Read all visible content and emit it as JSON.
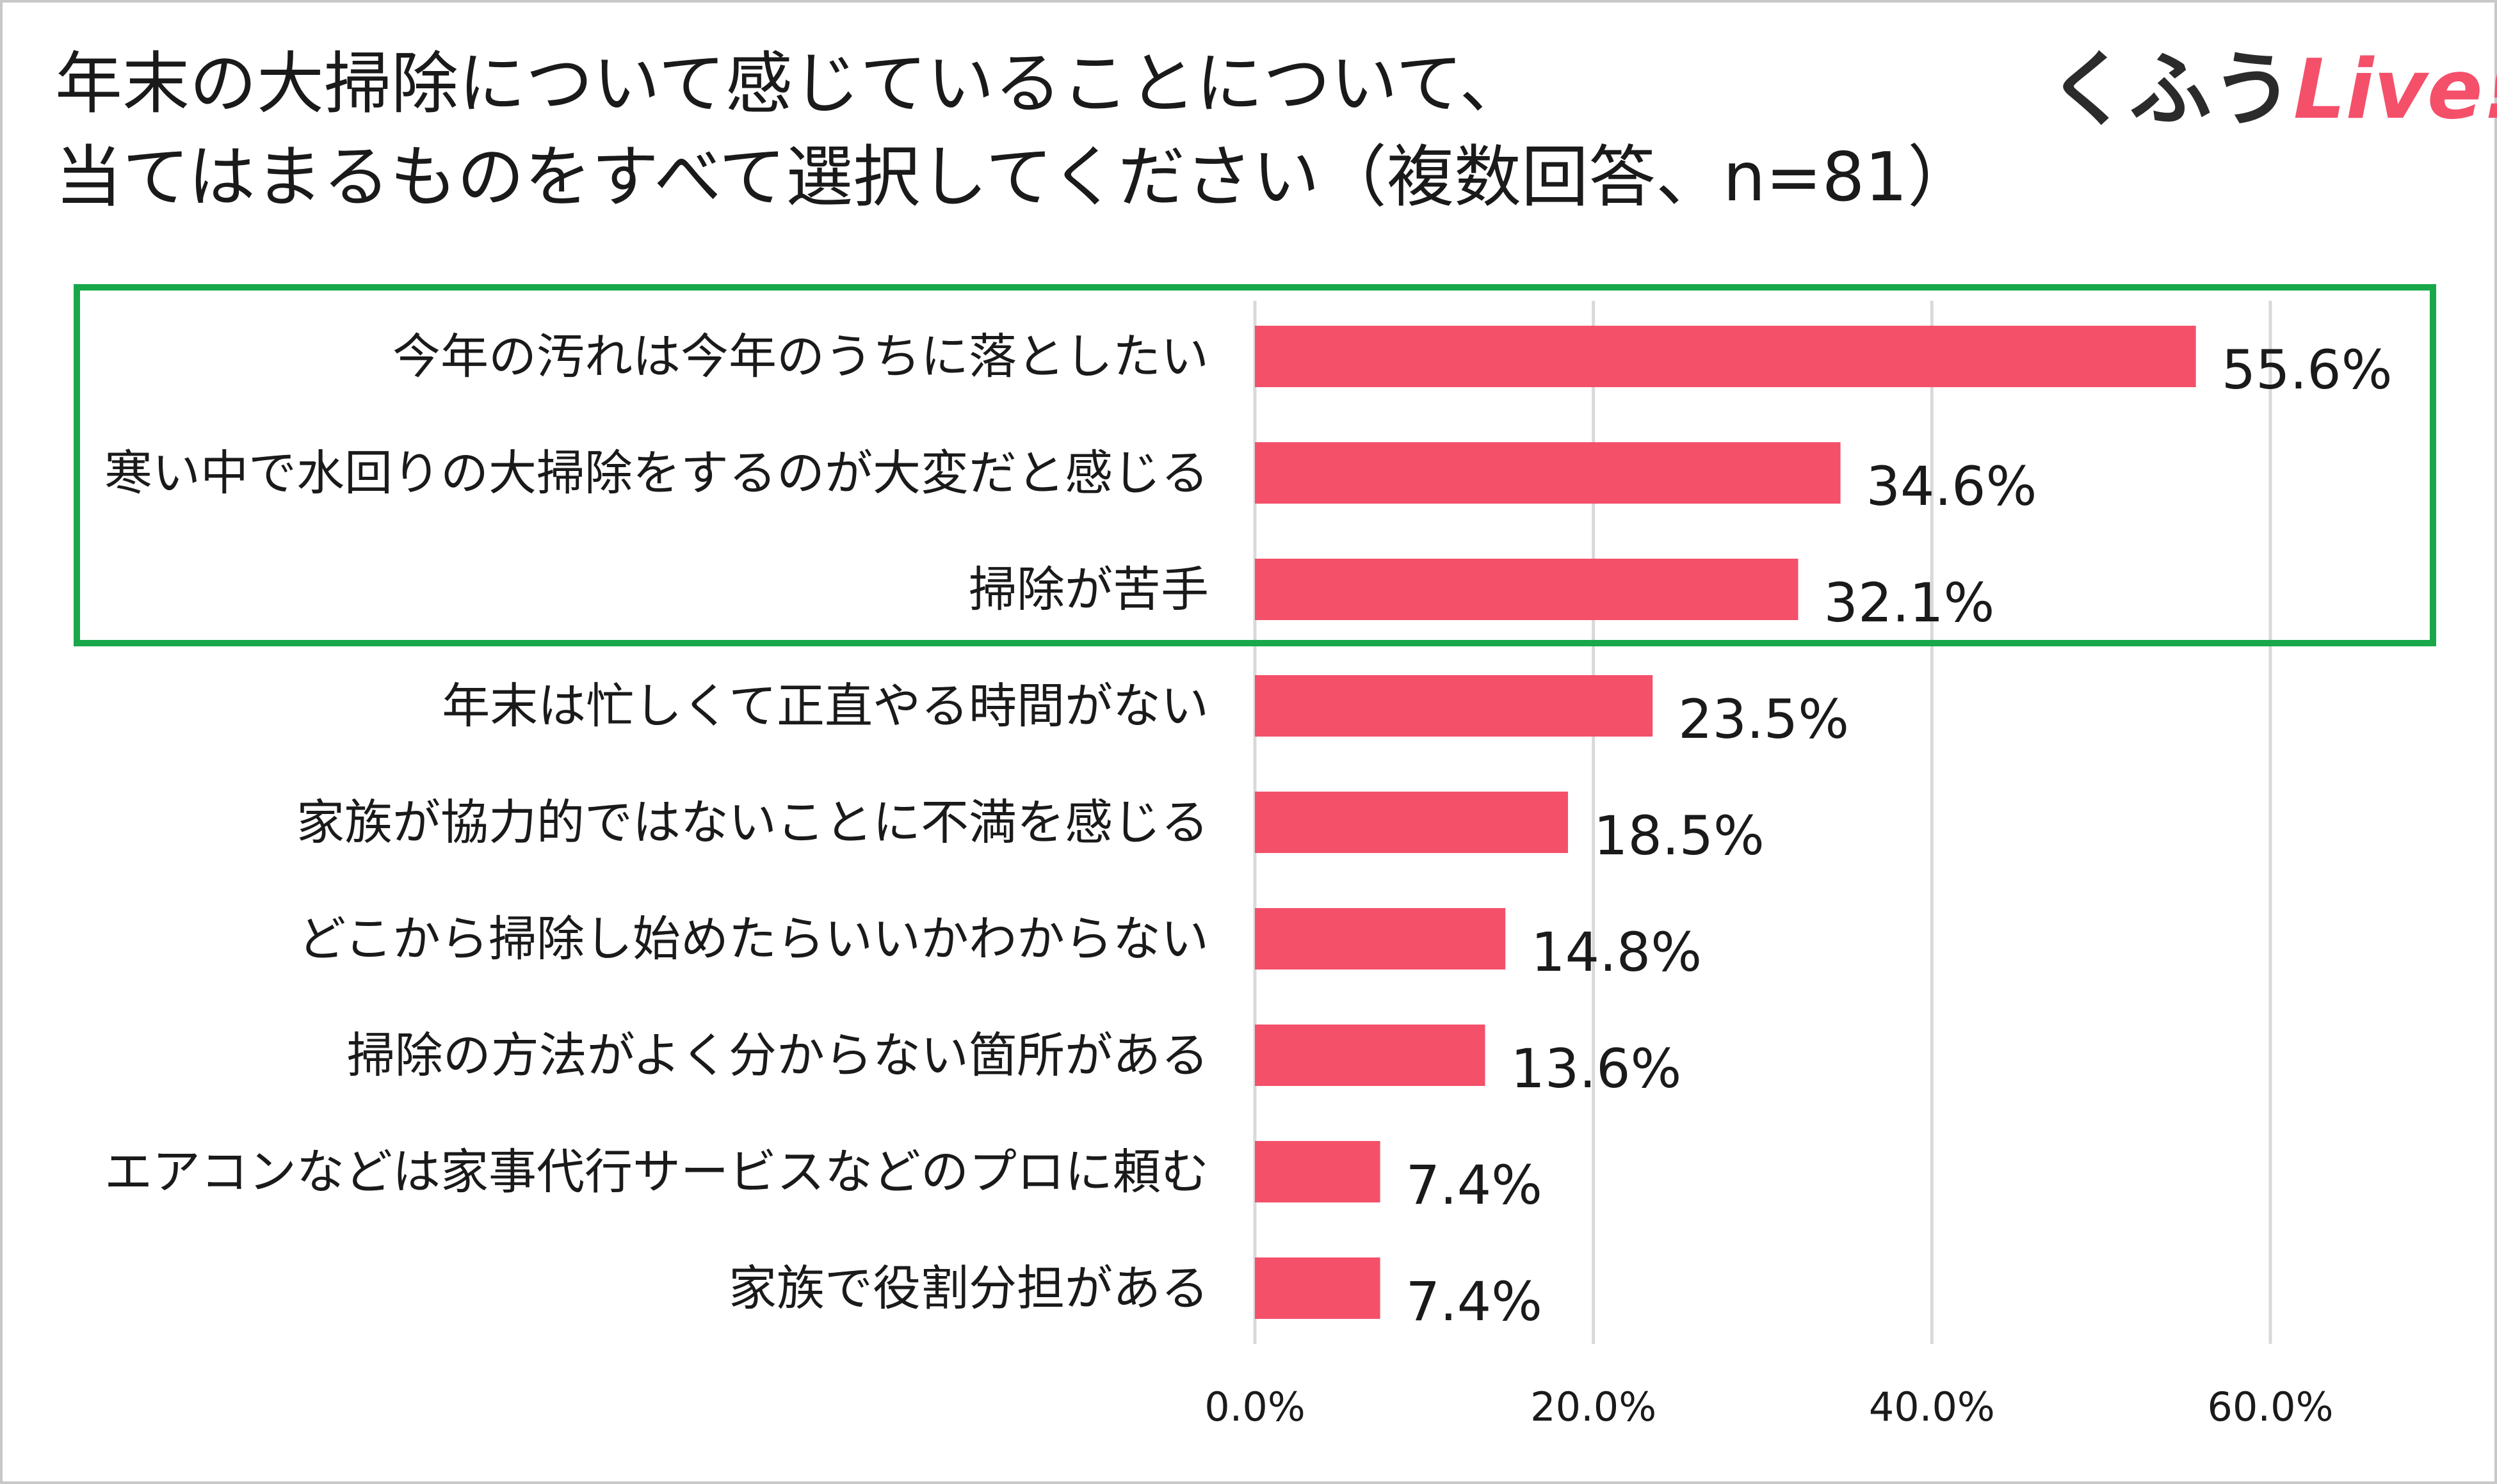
{
  "title": {
    "line1": "年末の大掃除について感じていることについて、",
    "line2": "当てはまるものをすべて選択してください（複数回答、n=81）"
  },
  "logo": {
    "part1": "くふう",
    "part2": "Live!"
  },
  "colors": {
    "bar": "#f4506a",
    "highlight_border": "#18a84a",
    "grid": "#d9d9d9"
  },
  "chart_data": {
    "type": "bar",
    "orientation": "horizontal",
    "title": "年末の大掃除について感じていることについて、当てはまるものをすべて選択してください（複数回答、n=81）",
    "categories": [
      "今年の汚れは今年のうちに落としたい",
      "寒い中で水回りの大掃除をするのが大変だと感じる",
      "掃除が苦手",
      "年末は忙しくて正直やる時間がない",
      "家族が協力的ではないことに不満を感じる",
      "どこから掃除し始めたらいいかわからない",
      "掃除の方法がよく分からない箇所がある",
      "エアコンなどは家事代行サービスなどのプロに頼む",
      "家族で役割分担がある"
    ],
    "values": [
      55.6,
      34.6,
      32.1,
      23.5,
      18.5,
      14.8,
      13.6,
      7.4,
      7.4
    ],
    "value_labels": [
      "55.6%",
      "34.6%",
      "32.1%",
      "23.5%",
      "18.5%",
      "14.8%",
      "13.6%",
      "7.4%",
      "7.4%"
    ],
    "xlim": [
      0,
      60
    ],
    "xticks": [
      0,
      20,
      40,
      60
    ],
    "xtick_labels": [
      "0.0%",
      "20.0%",
      "40.0%",
      "60.0%"
    ],
    "highlighted_categories": [
      0,
      1,
      2
    ],
    "grid": true,
    "unit": "%"
  }
}
